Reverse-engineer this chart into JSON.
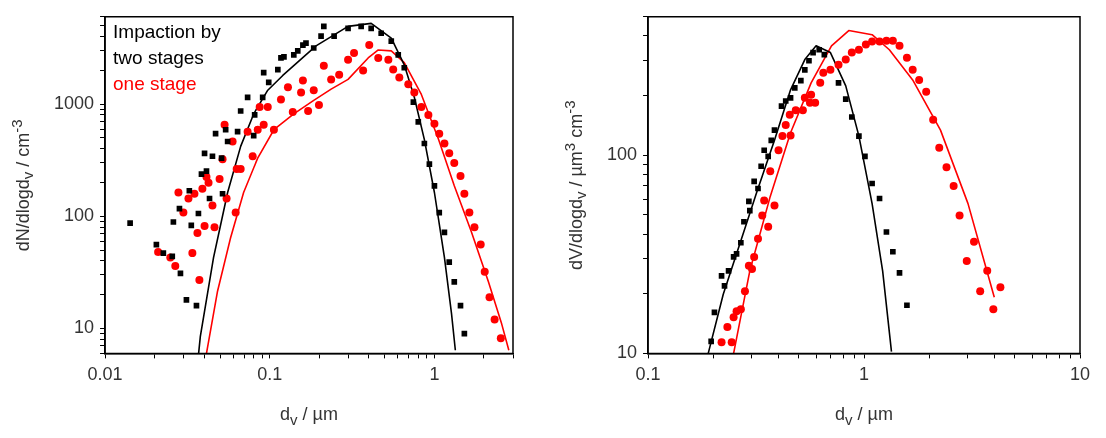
{
  "chart_data": [
    {
      "type": "scatter",
      "xlabel": "d$_{v}$ / µm",
      "ylabel": "dN/dlogd$_{v}$ / cm$^{-3}$",
      "legend_title": "Impaction by",
      "legend": "top left",
      "log": "xy",
      "xlim": [
        0.01,
        3
      ],
      "ylim": [
        6,
        6000
      ],
      "xticks": [
        0.01,
        {
          "value": 0.02,
          "label": null
        },
        {
          "value": 0.03,
          "label": null
        },
        {
          "value": 0.04,
          "label": null
        },
        {
          "value": 0.05,
          "label": null
        },
        {
          "value": 0.06,
          "label": null
        },
        {
          "value": 0.07,
          "label": null
        },
        {
          "value": 0.08,
          "label": null
        },
        {
          "value": 0.09,
          "label": null
        },
        0.1,
        {
          "value": 0.2,
          "label": null
        },
        {
          "value": 0.3,
          "label": null
        },
        {
          "value": 0.4,
          "label": null
        },
        {
          "value": 0.5,
          "label": null
        },
        {
          "value": 0.6,
          "label": null
        },
        {
          "value": 0.7,
          "label": null
        },
        {
          "value": 0.8,
          "label": null
        },
        {
          "value": 0.9,
          "label": null
        },
        1,
        {
          "value": 2,
          "label": null
        },
        {
          "value": 3,
          "label": null
        }
      ],
      "yticks": [
        {
          "value": 6,
          "label": null
        },
        {
          "value": 7,
          "label": null
        },
        {
          "value": 8,
          "label": null
        },
        {
          "value": 9,
          "label": null
        },
        10,
        {
          "value": 20,
          "label": null
        },
        {
          "value": 30,
          "label": null
        },
        {
          "value": 40,
          "label": null
        },
        {
          "value": 50,
          "label": null
        },
        {
          "value": 60,
          "label": null
        },
        {
          "value": 70,
          "label": null
        },
        {
          "value": 80,
          "label": null
        },
        {
          "value": 90,
          "label": null
        },
        100,
        {
          "value": 200,
          "label": null
        },
        {
          "value": 300,
          "label": null
        },
        {
          "value": 400,
          "label": null
        },
        {
          "value": 500,
          "label": null
        },
        {
          "value": 600,
          "label": null
        },
        {
          "value": 700,
          "label": null
        },
        {
          "value": 800,
          "label": null
        },
        {
          "value": 900,
          "label": null
        },
        1000,
        {
          "value": 2000,
          "label": null
        },
        {
          "value": 3000,
          "label": null
        },
        {
          "value": 4000,
          "label": null
        },
        {
          "value": 5000,
          "label": null
        },
        {
          "value": 6000,
          "label": null
        }
      ],
      "series": [
        {
          "name": "two stages",
          "type": "scatter",
          "color": "#000000",
          "marker": "square",
          "x": [
            0.0142,
            0.0205,
            0.0226,
            0.0256,
            0.026,
            0.0283,
            0.0287,
            0.0312,
            0.0325,
            0.0334,
            0.0359,
            0.0369,
            0.0385,
            0.0402,
            0.0413,
            0.0431,
            0.0449,
            0.0469,
            0.051,
            0.0517,
            0.054,
            0.0555,
            0.0638,
            0.0666,
            0.0734,
            0.0799,
            0.081,
            0.0906,
            0.0919,
            0.0986,
            0.112,
            0.117,
            0.122,
            0.14,
            0.148,
            0.159,
            0.166,
            0.185,
            0.205,
            0.213,
            0.246,
            0.299,
            0.359,
            0.413,
            0.475,
            0.547,
            0.603,
            0.656,
            0.745,
            0.798,
            0.869,
            0.932,
            1.0,
            1.07,
            1.15,
            1.23,
            1.32,
            1.44,
            1.52
          ],
          "values": [
            87,
            56,
            47,
            44,
            89,
            117,
            31,
            18,
            169,
            83,
            16,
            106,
            238,
            364,
            253,
            144,
            343,
            545,
            330,
            159,
            591,
            464,
            568,
            868,
            1150,
            524,
            801,
            1150,
            1910,
            1560,
            2030,
            2580,
            2640,
            2750,
            2980,
            3360,
            3500,
            3160,
            4030,
            4930,
            4030,
            4730,
            4930,
            4730,
            4280,
            3640,
            2750,
            2110,
            1040,
            695,
            446,
            292,
            187,
            108,
            72,
            39,
            26,
            16,
            9
          ]
        },
        {
          "name": "one stage",
          "type": "scatter",
          "color": "#ff0000",
          "marker": "circle",
          "x": [
            0.021,
            0.0249,
            0.0267,
            0.0279,
            0.0299,
            0.0321,
            0.0339,
            0.0349,
            0.0364,
            0.0374,
            0.039,
            0.0402,
            0.0413,
            0.0425,
            0.0449,
            0.0462,
            0.0496,
            0.0517,
            0.0532,
            0.0547,
            0.0595,
            0.0621,
            0.063,
            0.0666,
            0.0734,
            0.0788,
            0.0845,
            0.0869,
            0.0919,
            0.0973,
            0.106,
            0.117,
            0.129,
            0.138,
            0.155,
            0.159,
            0.171,
            0.185,
            0.199,
            0.213,
            0.236,
            0.264,
            0.299,
            0.325,
            0.369,
            0.402,
            0.456,
            0.525,
            0.562,
            0.612,
            0.694,
            0.755,
            0.833,
            0.919,
            1.0,
            1.07,
            1.15,
            1.23,
            1.32,
            1.44,
            1.52,
            1.63,
            1.75,
            1.91,
            2.02,
            2.16,
            2.32,
            2.53
          ],
          "values": [
            48,
            43,
            36,
            163,
            108,
            144,
            47,
            159,
            71,
            27,
            176,
            82,
            224,
            199,
            125,
            80,
            215,
            323,
            655,
            144,
            464,
            108,
            264,
            264,
            568,
            343,
            591,
            941,
            655,
            941,
            591,
            1100,
            1410,
            851,
            1270,
            1620,
            868,
            1330,
            980,
            2200,
            1660,
            1830,
            2480,
            2860,
            1990,
            3360,
            2580,
            2480,
            2030,
            1730,
            1500,
            1270,
            941,
            801,
            668,
            545,
            446,
            364,
            298,
            229,
            159,
            108,
            80,
            56,
            32,
            19,
            12,
            8.2
          ]
        },
        {
          "type": "line",
          "color": "#000000",
          "marker": "none",
          "line_style": "solid",
          "x": [
            0.037,
            0.0379,
            0.0456,
            0.0555,
            0.0666,
            0.0799,
            0.0973,
            0.12,
            0.191,
            0.299,
            0.413,
            0.547,
            0.656,
            0.755,
            0.869,
            1.0,
            1.15,
            1.27,
            1.34
          ],
          "values": [
            6,
            8.5,
            43,
            163,
            420,
            817,
            1330,
            1800,
            3300,
            4930,
            5240,
            3870,
            2240,
            1150,
            483,
            163,
            43,
            13.6,
            6.4
          ]
        },
        {
          "type": "line",
          "color": "#ff0000",
          "marker": "none",
          "line_style": "solid",
          "x": [
            0.0413,
            0.0482,
            0.0578,
            0.0694,
            0.0845,
            0.106,
            0.14,
            0.185,
            0.236,
            0.299,
            0.396,
            0.456,
            0.547,
            0.656,
            0.833,
            1.06,
            1.32,
            1.68,
            2.13,
            2.56,
            2.83
          ],
          "values": [
            6,
            21.5,
            64,
            163,
            330,
            591,
            817,
            1080,
            1360,
            1660,
            2580,
            3040,
            2980,
            2340,
            1220,
            483,
            187,
            72,
            26,
            11,
            6.4
          ]
        }
      ]
    },
    {
      "type": "scatter",
      "xlabel": "d$_{v}$ / µm",
      "ylabel": "dV/dlogd$_{v}$ / µm$^{3}$ cm$^{-3}$",
      "log": "xy",
      "xlim": [
        0.1,
        10
      ],
      "ylim": [
        10,
        500
      ],
      "xticks": [
        0.1,
        {
          "value": 0.2,
          "label": null
        },
        {
          "value": 0.3,
          "label": null
        },
        {
          "value": 0.4,
          "label": null
        },
        {
          "value": 0.5,
          "label": null
        },
        {
          "value": 0.6,
          "label": null
        },
        {
          "value": 0.7,
          "label": null
        },
        {
          "value": 0.8,
          "label": null
        },
        {
          "value": 0.9,
          "label": null
        },
        1,
        {
          "value": 2,
          "label": null
        },
        {
          "value": 3,
          "label": null
        },
        {
          "value": 4,
          "label": null
        },
        {
          "value": 5,
          "label": null
        },
        {
          "value": 6,
          "label": null
        },
        {
          "value": 7,
          "label": null
        },
        {
          "value": 8,
          "label": null
        },
        {
          "value": 9,
          "label": null
        },
        10
      ],
      "yticks": [
        10,
        {
          "value": 20,
          "label": null
        },
        {
          "value": 30,
          "label": null
        },
        {
          "value": 40,
          "label": null
        },
        {
          "value": 50,
          "label": null
        },
        {
          "value": 60,
          "label": null
        },
        {
          "value": 70,
          "label": null
        },
        {
          "value": 80,
          "label": null
        },
        {
          "value": 90,
          "label": null
        },
        100,
        {
          "value": 200,
          "label": null
        },
        {
          "value": 300,
          "label": null
        },
        {
          "value": 400,
          "label": null
        },
        {
          "value": 500,
          "label": null
        }
      ],
      "series": [
        {
          "type": "scatter",
          "color": "#000000",
          "marker": "square",
          "x": [
            0.196,
            0.203,
            0.219,
            0.226,
            0.236,
            0.249,
            0.257,
            0.269,
            0.278,
            0.293,
            0.296,
            0.31,
            0.323,
            0.334,
            0.345,
            0.36,
            0.372,
            0.385,
            0.415,
            0.434,
            0.457,
            0.478,
            0.51,
            0.532,
            0.556,
            0.581,
            0.62,
            0.655,
            0.762,
            0.823,
            0.878,
            0.947,
            1.01,
            1.09,
            1.18,
            1.27,
            1.36,
            1.46,
            1.58
          ],
          "values": [
            11.5,
            16.1,
            24.6,
            21.9,
            26.1,
            30.7,
            31.8,
            36.2,
            46.2,
            58.5,
            52.6,
            73.8,
            68,
            88,
            106,
            98.8,
            119,
            134,
            177,
            188,
            195,
            219,
            238,
            270,
            300,
            330,
            341,
            322,
            232,
            192,
            156,
            125,
            98.8,
            72,
            60.5,
            41,
            32.6,
            25.5,
            17.5
          ]
        },
        {
          "type": "scatter",
          "color": "#ff0000",
          "marker": "circle",
          "x": [
            0.219,
            0.233,
            0.244,
            0.249,
            0.257,
            0.269,
            0.281,
            0.293,
            0.303,
            0.31,
            0.323,
            0.338,
            0.345,
            0.36,
            0.368,
            0.385,
            0.402,
            0.419,
            0.434,
            0.453,
            0.457,
            0.483,
            0.521,
            0.532,
            0.562,
            0.569,
            0.594,
            0.627,
            0.648,
            0.699,
            0.762,
            0.823,
            0.878,
            0.947,
            1.02,
            1.09,
            1.18,
            1.27,
            1.36,
            1.46,
            1.58,
            1.68,
            1.8,
            1.94,
            2.09,
            2.23,
            2.41,
            2.6,
            2.77,
            2.99,
            3.23,
            3.45,
            3.72,
            3.97,
            4.28
          ],
          "values": [
            11.4,
            13.6,
            11.4,
            15.2,
            16.3,
            16.7,
            20.6,
            27.7,
            26.7,
            30.7,
            37.9,
            49.6,
            59.1,
            43.6,
            83,
            55.8,
            106,
            125,
            142,
            160,
            126,
            169,
            169,
            195,
            184,
            202,
            184,
            232,
            261,
            270,
            286,
            304,
            330,
            341,
            362,
            375,
            375,
            379,
            379,
            357,
            311,
            270,
            240,
            209,
            151,
            109,
            87,
            70,
            49.6,
            29.3,
            36.6,
            20.6,
            26.1,
            16.7,
            21.6
          ]
        },
        {
          "type": "line",
          "color": "#000000",
          "marker": "none",
          "line_style": "solid",
          "x": [
            0.19,
            0.223,
            0.266,
            0.32,
            0.385,
            0.457,
            0.532,
            0.6,
            0.699,
            0.823,
            0.947,
            1.09,
            1.22,
            1.34
          ],
          "values": [
            10,
            19.9,
            35.7,
            66,
            119,
            214,
            304,
            357,
            330,
            224,
            125,
            57,
            26,
            10.2
          ]
        },
        {
          "type": "line",
          "color": "#ff0000",
          "marker": "none",
          "line_style": "solid",
          "x": [
            0.249,
            0.296,
            0.368,
            0.457,
            0.569,
            0.707,
            0.85,
            1.09,
            1.31,
            1.68,
            2.26,
            3.03,
            4.01
          ],
          "values": [
            10,
            26.1,
            62,
            130,
            232,
            357,
            426,
            406,
            341,
            240,
            134,
            57,
            19.2
          ]
        }
      ]
    }
  ]
}
